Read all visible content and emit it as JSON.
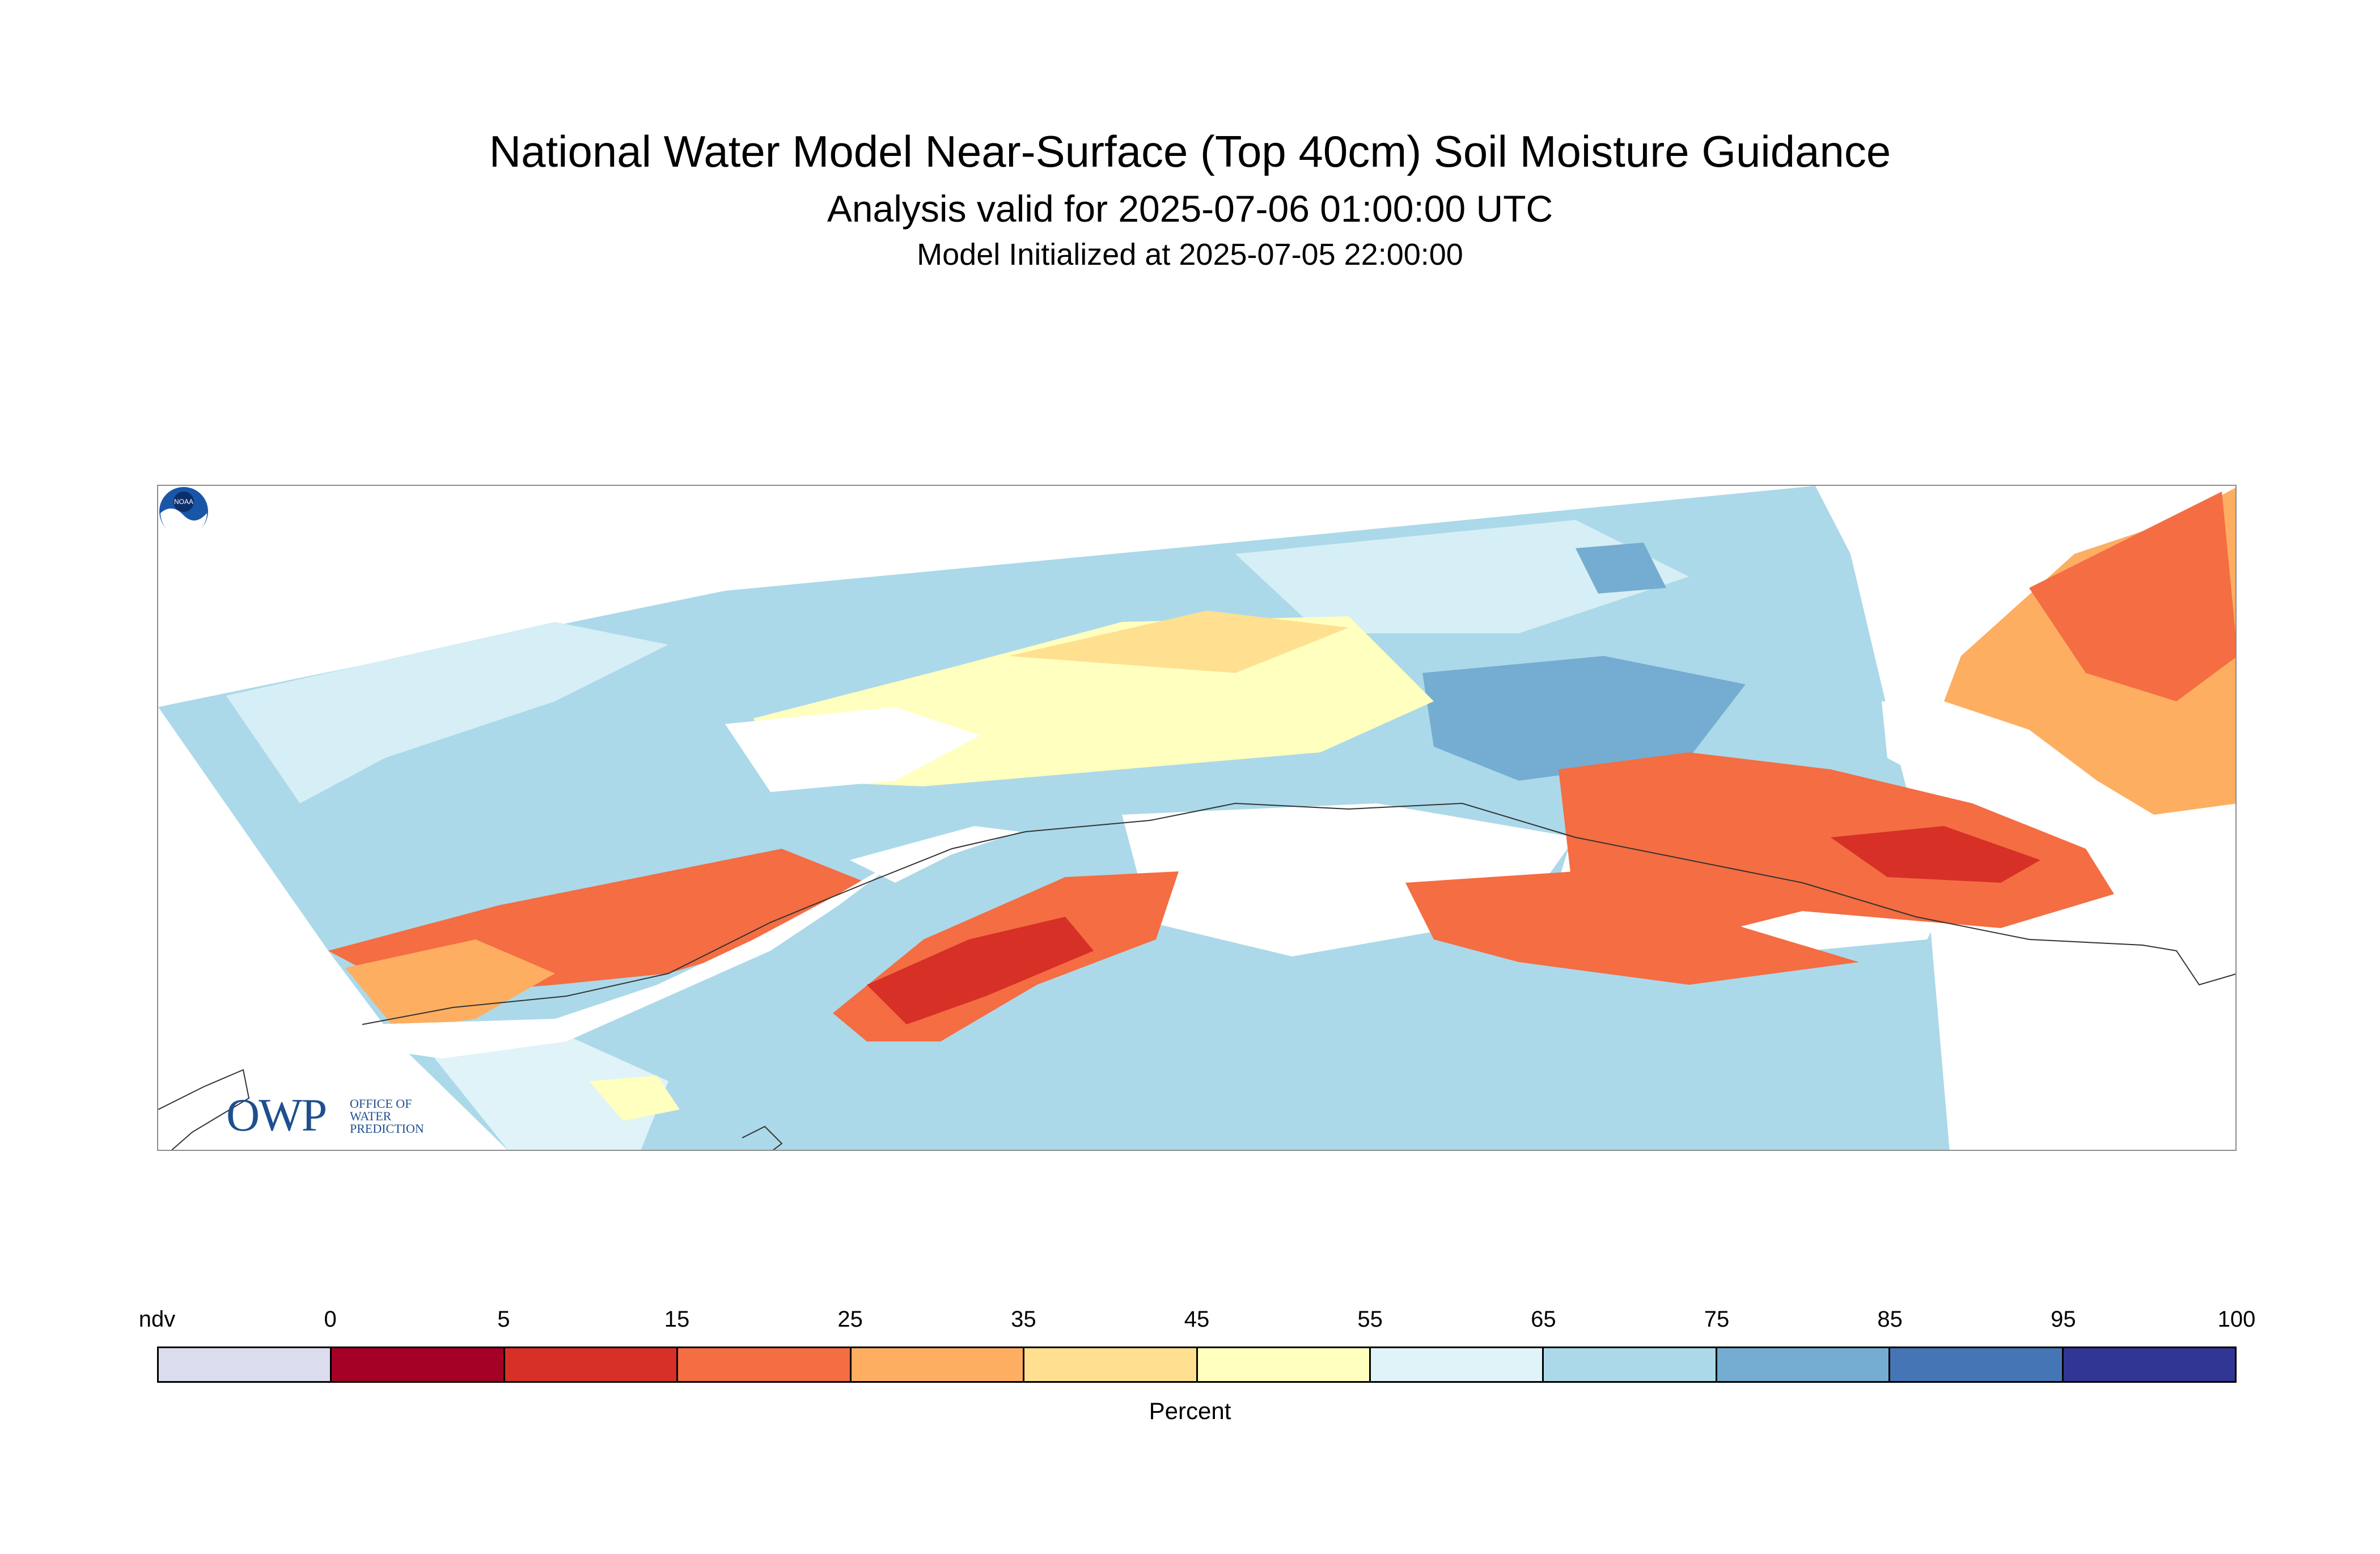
{
  "header": {
    "title": "National Water Model Near-Surface (Top 40cm) Soil Moisture Guidance",
    "valid": "Analysis valid for 2025-07-06 01:00:00 UTC",
    "init": "Model Initialized at 2025-07-05 22:00:00"
  },
  "logos": {
    "owp_letters": "OWP",
    "owp_lines": [
      "OFFICE OF",
      "WATER",
      "PREDICTION"
    ],
    "noaa": "NOAA"
  },
  "legend": {
    "tick_labels": [
      "ndv",
      "0",
      "5",
      "15",
      "25",
      "35",
      "45",
      "55",
      "65",
      "75",
      "85",
      "95",
      "100"
    ],
    "unit": "Percent",
    "colors": [
      "#dcdcef",
      "#a50026",
      "#d73027",
      "#f46d43",
      "#fdae61",
      "#fee090",
      "#ffffbf",
      "#e0f3f8",
      "#abd9e9",
      "#74add1",
      "#4575b4",
      "#313695"
    ]
  }
}
